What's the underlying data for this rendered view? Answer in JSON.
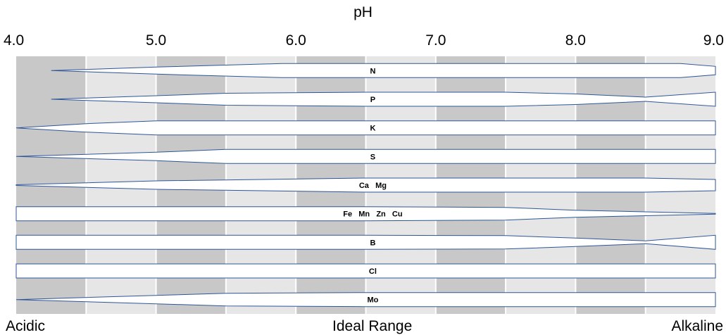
{
  "chart_data": {
    "type": "area",
    "title": "",
    "xlabel": "pH",
    "ylabel": "",
    "x_ticks": [
      "4.0",
      "5.0",
      "6.0",
      "7.0",
      "8.0",
      "9.0"
    ],
    "xlim": [
      4.0,
      9.0
    ],
    "band_colors": [
      "#c8c8c8",
      "#e6e6e6"
    ],
    "region_labels": [
      {
        "text": "Acidic",
        "position": "left"
      },
      {
        "text": "Ideal Range",
        "position": "center"
      },
      {
        "text": "Alkaline",
        "position": "right"
      }
    ],
    "series": [
      {
        "name": "N",
        "x": [
          4.25,
          5.0,
          5.9,
          6.5,
          7.5,
          8.5,
          8.75,
          9.0
        ],
        "width": [
          0.0,
          0.5,
          1.0,
          1.0,
          1.0,
          1.0,
          1.0,
          0.6
        ]
      },
      {
        "name": "P",
        "x": [
          4.25,
          5.0,
          5.5,
          6.5,
          7.5,
          8.0,
          8.5,
          9.0
        ],
        "width": [
          0.0,
          0.5,
          0.85,
          1.0,
          1.0,
          0.75,
          0.3,
          1.0
        ]
      },
      {
        "name": "K",
        "x": [
          4.0,
          4.5,
          5.0,
          6.5,
          9.0
        ],
        "width": [
          0.0,
          0.6,
          1.0,
          1.0,
          1.0
        ]
      },
      {
        "name": "S",
        "x": [
          4.0,
          5.0,
          5.5,
          6.5,
          8.5,
          9.0
        ],
        "width": [
          0.0,
          0.6,
          1.0,
          1.0,
          1.0,
          1.0
        ]
      },
      {
        "name": "Ca Mg",
        "x": [
          4.0,
          5.0,
          6.5,
          8.5,
          9.0
        ],
        "width": [
          0.05,
          0.6,
          1.0,
          1.0,
          0.8
        ]
      },
      {
        "name": "Fe Mn Zn Cu",
        "x": [
          4.0,
          5.0,
          6.5,
          7.5,
          8.0,
          9.0
        ],
        "width": [
          1.0,
          1.0,
          1.0,
          0.9,
          0.5,
          0.05
        ]
      },
      {
        "name": "B",
        "x": [
          4.0,
          5.0,
          6.5,
          7.5,
          8.0,
          8.5,
          9.0
        ],
        "width": [
          1.0,
          1.0,
          1.0,
          0.95,
          0.6,
          0.2,
          1.0
        ]
      },
      {
        "name": "Cl",
        "x": [
          4.0,
          9.0
        ],
        "width": [
          1.0,
          1.0
        ]
      },
      {
        "name": "Mo",
        "x": [
          4.0,
          5.5,
          6.5,
          9.0
        ],
        "width": [
          0.0,
          0.9,
          1.0,
          1.0
        ]
      }
    ]
  }
}
